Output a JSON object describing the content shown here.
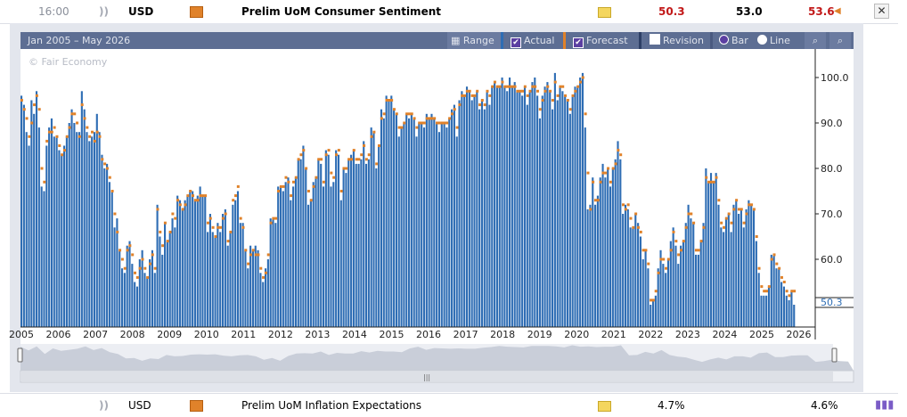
{
  "top_row": {
    "time": "16:00",
    "currency": "USD",
    "event": "Prelim UoM Consumer Sentiment",
    "actual": "50.3",
    "forecast": "53.0",
    "previous": "53.6"
  },
  "bottom_row": {
    "currency": "USD",
    "event": "Prelim UoM Inflation Expectations",
    "forecast": "4.7%",
    "previous": "4.6%"
  },
  "toolbar": {
    "range_text": "Jan 2005 – May 2026",
    "range_button": "Range",
    "actual_label": "Actual",
    "forecast_label": "Forecast",
    "revision_label": "Revision",
    "bar_label": "Bar",
    "line_label": "Line"
  },
  "colors": {
    "actual": "#2e6db4",
    "forecast": "#e0822a",
    "better": "#c21818",
    "neutral": "#000000"
  },
  "chart_data": {
    "type": "bar",
    "watermark": "© Fair Economy",
    "x_ticks": [
      "2005",
      "2006",
      "2007",
      "2008",
      "2009",
      "2010",
      "2011",
      "2012",
      "2013",
      "2014",
      "2015",
      "2016",
      "2017",
      "2018",
      "2019",
      "2020",
      "2021",
      "2022",
      "2023",
      "2024",
      "2025",
      "2026"
    ],
    "y_ticks": [
      "100.0",
      "90.0",
      "80.0",
      "70.0",
      "60.0"
    ],
    "ylim": [
      47,
      104
    ],
    "last_value_label": "50.3",
    "series": [
      {
        "name": "Actual",
        "values": [
          96,
          94,
          88,
          85,
          95,
          92,
          97,
          89,
          76,
          75,
          85,
          89,
          91,
          87,
          87,
          84,
          83,
          85,
          87,
          90,
          93,
          90,
          88,
          88,
          97,
          93,
          88,
          86,
          87,
          88,
          92,
          88,
          83,
          80,
          81,
          77,
          75,
          67,
          69,
          62,
          58,
          57,
          63,
          64,
          59,
          55,
          54,
          60,
          62,
          57,
          56,
          60,
          62,
          57,
          72,
          65,
          61,
          68,
          64,
          66,
          69,
          67,
          74,
          73,
          71,
          73,
          74,
          75,
          75,
          73,
          74,
          76,
          74,
          74,
          66,
          70,
          66,
          65,
          68,
          66,
          70,
          71,
          63,
          66,
          72,
          73,
          75,
          68,
          68,
          62,
          58,
          63,
          62,
          63,
          62,
          57,
          55,
          58,
          60,
          69,
          69,
          68,
          76,
          76,
          75,
          77,
          78,
          73,
          76,
          78,
          82,
          82,
          85,
          80,
          72,
          73,
          77,
          78,
          82,
          81,
          76,
          84,
          83,
          76,
          77,
          84,
          83,
          73,
          80,
          79,
          82,
          83,
          84,
          81,
          81,
          82,
          86,
          81,
          82,
          89,
          88,
          80,
          85,
          93,
          91,
          96,
          95,
          96,
          93,
          92,
          87,
          89,
          90,
          92,
          91,
          92,
          91,
          87,
          90,
          90,
          89,
          92,
          91,
          92,
          91,
          90,
          88,
          90,
          90,
          89,
          91,
          93,
          94,
          87,
          95,
          97,
          96,
          98,
          97,
          95,
          96,
          97,
          93,
          95,
          93,
          97,
          94,
          98,
          99,
          98,
          98,
          100,
          98,
          97,
          100,
          98,
          99,
          97,
          97,
          96,
          98,
          94,
          97,
          99,
          100,
          96,
          91,
          96,
          98,
          99,
          97,
          93,
          101,
          95,
          98,
          97,
          96,
          95,
          92,
          96,
          98,
          98,
          100,
          101,
          89,
          71,
          72,
          78,
          72,
          74,
          78,
          81,
          78,
          80,
          76,
          80,
          82,
          86,
          82,
          70,
          72,
          71,
          67,
          67,
          70,
          68,
          65,
          60,
          62,
          58,
          50,
          51,
          52,
          58,
          62,
          59,
          57,
          60,
          64,
          67,
          63,
          59,
          63,
          64,
          68,
          72,
          69,
          68,
          61,
          61,
          64,
          68,
          80,
          77,
          79,
          77,
          79,
          72,
          67,
          66,
          69,
          70,
          66,
          72,
          73,
          70,
          71,
          67,
          71,
          73,
          72,
          71,
          64,
          57,
          52,
          52,
          52,
          54,
          61,
          61,
          58,
          58,
          55,
          54,
          52,
          51,
          53,
          50
        ]
      },
      {
        "name": "Forecast",
        "values": [
          95,
          93,
          91,
          87,
          90,
          94,
          96,
          93,
          80,
          77,
          86,
          88,
          88,
          89,
          87,
          85,
          83,
          84,
          87,
          89,
          92,
          92,
          90,
          87,
          94,
          91,
          89,
          87,
          88,
          86,
          88,
          87,
          82,
          81,
          80,
          78,
          75,
          70,
          66,
          62,
          60,
          58,
          62,
          63,
          61,
          57,
          56,
          58,
          60,
          58,
          56,
          59,
          61,
          58,
          71,
          66,
          63,
          68,
          64,
          66,
          70,
          69,
          73,
          72,
          71,
          72,
          74,
          75,
          74,
          73,
          73,
          74,
          74,
          74,
          68,
          69,
          67,
          65,
          67,
          67,
          69,
          70,
          64,
          66,
          73,
          74,
          76,
          69,
          67,
          62,
          59,
          61,
          62,
          61,
          61,
          58,
          56,
          57,
          61,
          68,
          69,
          69,
          75,
          76,
          76,
          78,
          77,
          74,
          77,
          78,
          82,
          83,
          84,
          80,
          75,
          73,
          76,
          78,
          82,
          82,
          77,
          83,
          84,
          79,
          78,
          83,
          84,
          75,
          80,
          80,
          82,
          82,
          84,
          82,
          82,
          83,
          85,
          82,
          83,
          87,
          88,
          81,
          85,
          91,
          92,
          95,
          95,
          95,
          93,
          92,
          89,
          89,
          90,
          92,
          92,
          92,
          91,
          89,
          90,
          90,
          90,
          91,
          91,
          91,
          91,
          90,
          90,
          90,
          90,
          90,
          91,
          92,
          93,
          89,
          94,
          96,
          96,
          97,
          97,
          96,
          96,
          97,
          94,
          95,
          94,
          97,
          96,
          98,
          99,
          98,
          98,
          99,
          98,
          98,
          98,
          98,
          98,
          97,
          97,
          97,
          98,
          96,
          97,
          98,
          98,
          97,
          93,
          95,
          97,
          98,
          97,
          95,
          99,
          96,
          98,
          98,
          96,
          95,
          93,
          96,
          97,
          98,
          99,
          100,
          92,
          79,
          71,
          77,
          73,
          73,
          77,
          79,
          79,
          80,
          77,
          80,
          81,
          84,
          83,
          72,
          71,
          72,
          69,
          67,
          70,
          67,
          66,
          62,
          62,
          59,
          51,
          51,
          53,
          57,
          60,
          60,
          58,
          60,
          62,
          66,
          64,
          61,
          62,
          64,
          67,
          70,
          70,
          68,
          62,
          62,
          64,
          67,
          78,
          77,
          77,
          77,
          78,
          73,
          68,
          67,
          69,
          70,
          68,
          71,
          73,
          71,
          71,
          68,
          70,
          72,
          72,
          71,
          65,
          58,
          54,
          53,
          53,
          54,
          60,
          61,
          59,
          58,
          56,
          55,
          53,
          52,
          53,
          53
        ]
      }
    ]
  }
}
